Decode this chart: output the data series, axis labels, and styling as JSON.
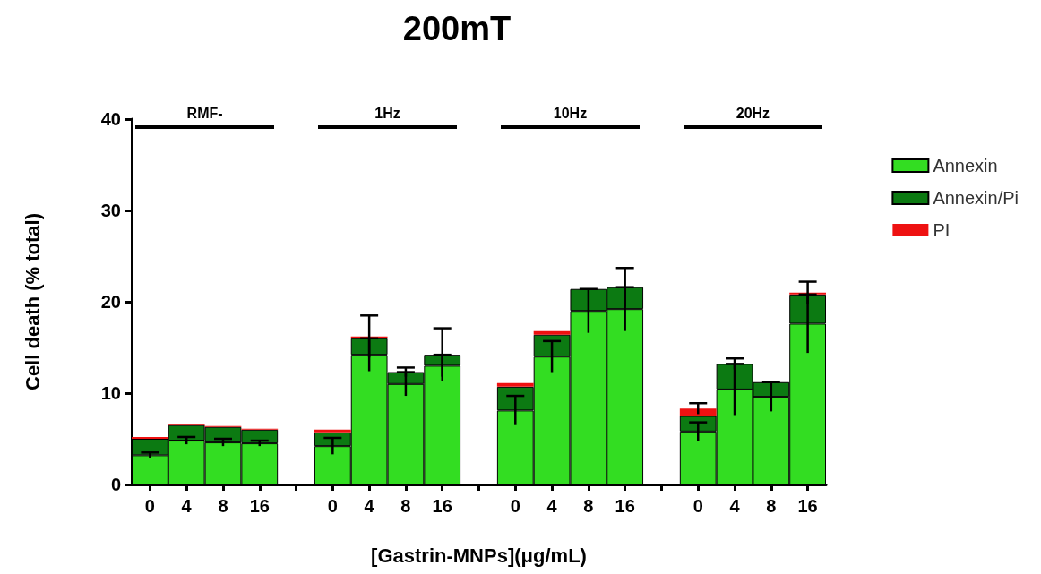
{
  "chart_data": {
    "type": "bar",
    "title": "200mT",
    "xlabel": "[Gastrin-MNPs](μg/mL)",
    "ylabel": "Cell death (% total)",
    "categories": [
      "0",
      "4",
      "8",
      "16",
      null,
      "0",
      "4",
      "8",
      "16",
      null,
      "0",
      "4",
      "8",
      "16",
      null,
      "0",
      "4",
      "8",
      "16"
    ],
    "stacked": true,
    "ylim": [
      0,
      40
    ],
    "yticks": [
      0,
      10,
      20,
      30,
      40
    ],
    "grid": false,
    "legend": "right",
    "annotations": [
      "RMF-",
      "1Hz",
      "10Hz",
      "20Hz"
    ],
    "series": [
      {
        "name": "Annexin",
        "color": "#33dd22",
        "values": [
          3.2,
          4.8,
          4.6,
          4.5,
          null,
          4.2,
          14.2,
          11.0,
          13.0,
          null,
          8.1,
          14.0,
          19.0,
          19.2,
          null,
          5.8,
          10.4,
          9.6,
          17.6
        ],
        "errors": [
          0.3,
          0.4,
          0.4,
          0.3,
          null,
          0.9,
          1.8,
          1.3,
          1.2,
          null,
          1.6,
          1.7,
          2.4,
          2.4,
          null,
          1.0,
          2.8,
          1.6,
          3.2
        ]
      },
      {
        "name": "Annexin/Pi",
        "color": "#0c7a12",
        "values": [
          1.8,
          1.7,
          1.7,
          1.5,
          null,
          1.5,
          1.8,
          1.3,
          1.2,
          null,
          2.6,
          2.4,
          2.4,
          2.4,
          null,
          1.7,
          2.8,
          1.6,
          3.2
        ],
        "errors": [
          null,
          null,
          null,
          null,
          null,
          null,
          null,
          0.5,
          2.9,
          null,
          null,
          null,
          null,
          2.1,
          null,
          null,
          0.6,
          null,
          null
        ]
      },
      {
        "name": "PI",
        "color": "#ee1111",
        "values": [
          0.2,
          0.1,
          0.1,
          0.1,
          null,
          0.3,
          0.2,
          null,
          null,
          null,
          0.4,
          0.4,
          null,
          null,
          null,
          0.8,
          null,
          null,
          0.2
        ],
        "errors": [
          null,
          null,
          null,
          null,
          null,
          null,
          2.3,
          null,
          null,
          null,
          null,
          null,
          null,
          null,
          null,
          0.6,
          null,
          null,
          1.2
        ]
      }
    ]
  }
}
